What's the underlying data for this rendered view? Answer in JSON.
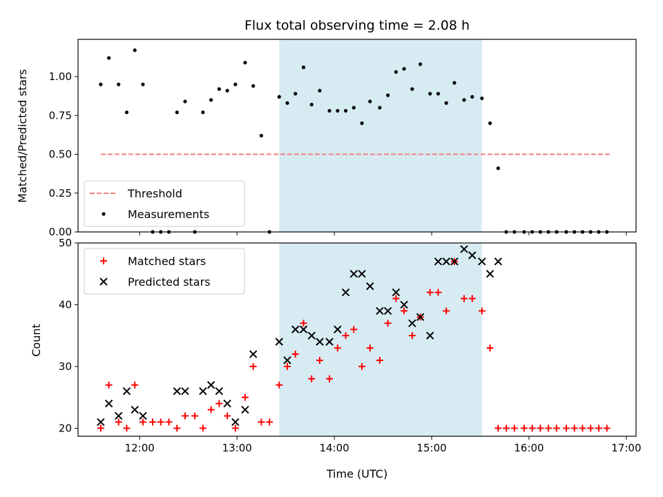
{
  "chart_data": [
    {
      "type": "scatter",
      "title": "Flux total observing time = 2.08 h",
      "xlabel": "",
      "ylabel": "Matched/Predicted stars",
      "xlim": [
        "11:22",
        "17:06"
      ],
      "ylim": [
        0,
        1.24
      ],
      "yticks": [
        "0.00",
        "0.25",
        "0.50",
        "0.75",
        "1.00"
      ],
      "grid": false,
      "legend_position": "bottom-left",
      "highlight_span": {
        "start": "13:26",
        "end": "15:31",
        "color": "#add8e6"
      },
      "threshold": {
        "name": "Threshold",
        "value": 0.5,
        "x_start": "11:36",
        "x_end": "16:51",
        "color": "#f08080",
        "style": "dashed"
      },
      "series": [
        {
          "name": "Measurements",
          "color": "#000000",
          "marker": "dot",
          "x": [
            "11:36",
            "11:41",
            "11:47",
            "11:52",
            "11:57",
            "12:02",
            "12:08",
            "12:13",
            "12:18",
            "12:23",
            "12:28",
            "12:34",
            "12:39",
            "12:44",
            "12:49",
            "12:54",
            "12:59",
            "13:05",
            "13:10",
            "13:15",
            "13:20",
            "13:26",
            "13:31",
            "13:36",
            "13:41",
            "13:46",
            "13:51",
            "13:57",
            "14:02",
            "14:07",
            "14:12",
            "14:17",
            "14:22",
            "14:28",
            "14:33",
            "14:38",
            "14:43",
            "14:48",
            "14:53",
            "14:59",
            "15:04",
            "15:09",
            "15:14",
            "15:20",
            "15:25",
            "15:31",
            "15:36",
            "15:41",
            "15:46",
            "15:51",
            "15:57",
            "16:02",
            "16:07",
            "16:12",
            "16:17",
            "16:23",
            "16:28",
            "16:33",
            "16:38",
            "16:43",
            "16:48"
          ],
          "y": [
            0.95,
            1.12,
            0.95,
            0.77,
            1.17,
            0.95,
            0,
            0,
            0,
            0.77,
            0.84,
            0,
            0.77,
            0.85,
            0.92,
            0.91,
            0.95,
            1.09,
            0.94,
            0.62,
            0,
            0.87,
            0.83,
            0.89,
            1.06,
            0.82,
            0.91,
            0.78,
            0.78,
            0.78,
            0.8,
            0.7,
            0.84,
            0.8,
            0.88,
            1.03,
            1.05,
            0.92,
            1.08,
            0.89,
            0.89,
            0.83,
            0.96,
            0.85,
            0.87,
            0.86,
            0.7,
            0.41,
            0,
            0,
            0,
            0,
            0,
            0,
            0,
            0,
            0,
            0,
            0,
            0,
            0
          ]
        }
      ]
    },
    {
      "type": "scatter",
      "title": "",
      "xlabel": "Time (UTC)",
      "ylabel": "Count",
      "xlim": [
        "11:22",
        "17:06"
      ],
      "ylim": [
        18.7,
        50
      ],
      "xticks": [
        "12:00",
        "13:00",
        "14:00",
        "15:00",
        "16:00",
        "17:00"
      ],
      "yticks": [
        "20",
        "30",
        "40",
        "50"
      ],
      "grid": false,
      "legend_position": "top-left",
      "highlight_span": {
        "start": "13:26",
        "end": "15:31",
        "color": "#add8e6"
      },
      "series": [
        {
          "name": "Matched stars",
          "color": "#ff0000",
          "marker": "plus",
          "x": [
            "11:36",
            "11:41",
            "11:47",
            "11:52",
            "11:57",
            "12:02",
            "12:08",
            "12:13",
            "12:18",
            "12:23",
            "12:28",
            "12:34",
            "12:39",
            "12:44",
            "12:49",
            "12:54",
            "12:59",
            "13:05",
            "13:10",
            "13:15",
            "13:20",
            "13:26",
            "13:31",
            "13:36",
            "13:41",
            "13:46",
            "13:51",
            "13:57",
            "14:02",
            "14:07",
            "14:12",
            "14:17",
            "14:22",
            "14:28",
            "14:33",
            "14:38",
            "14:43",
            "14:48",
            "14:53",
            "14:59",
            "15:04",
            "15:09",
            "15:14",
            "15:20",
            "15:25",
            "15:31",
            "15:36",
            "15:41",
            "15:46",
            "15:51",
            "15:57",
            "16:02",
            "16:07",
            "16:12",
            "16:17",
            "16:23",
            "16:28",
            "16:33",
            "16:38",
            "16:43",
            "16:48"
          ],
          "y": [
            20,
            27,
            21,
            20,
            27,
            21,
            21,
            21,
            21,
            20,
            22,
            22,
            20,
            23,
            24,
            22,
            20,
            25,
            30,
            21,
            21,
            27,
            30,
            32,
            37,
            28,
            31,
            28,
            33,
            35,
            36,
            30,
            33,
            31,
            37,
            41,
            39,
            35,
            38,
            42,
            42,
            39,
            47,
            41,
            41,
            39,
            33,
            20,
            20,
            20,
            20,
            20,
            20,
            20,
            20,
            20,
            20,
            20,
            20,
            20,
            20
          ]
        },
        {
          "name": "Predicted stars",
          "color": "#000000",
          "marker": "x",
          "x": [
            "11:36",
            "11:41",
            "11:47",
            "11:52",
            "11:57",
            "12:02",
            "12:23",
            "12:28",
            "12:39",
            "12:44",
            "12:49",
            "12:54",
            "12:59",
            "13:05",
            "13:10",
            "13:26",
            "13:31",
            "13:36",
            "13:41",
            "13:46",
            "13:51",
            "13:57",
            "14:02",
            "14:07",
            "14:12",
            "14:17",
            "14:22",
            "14:28",
            "14:33",
            "14:38",
            "14:43",
            "14:48",
            "14:53",
            "14:59",
            "15:04",
            "15:09",
            "15:14",
            "15:20",
            "15:25",
            "15:31",
            "15:36",
            "15:41"
          ],
          "y": [
            21,
            24,
            22,
            26,
            23,
            22,
            26,
            26,
            26,
            27,
            26,
            24,
            21,
            23,
            32,
            34,
            31,
            36,
            36,
            35,
            34,
            34,
            36,
            42,
            45,
            45,
            43,
            39,
            39,
            42,
            40,
            37,
            38,
            35,
            47,
            47,
            47,
            49,
            48,
            47,
            45,
            47
          ]
        }
      ]
    }
  ]
}
